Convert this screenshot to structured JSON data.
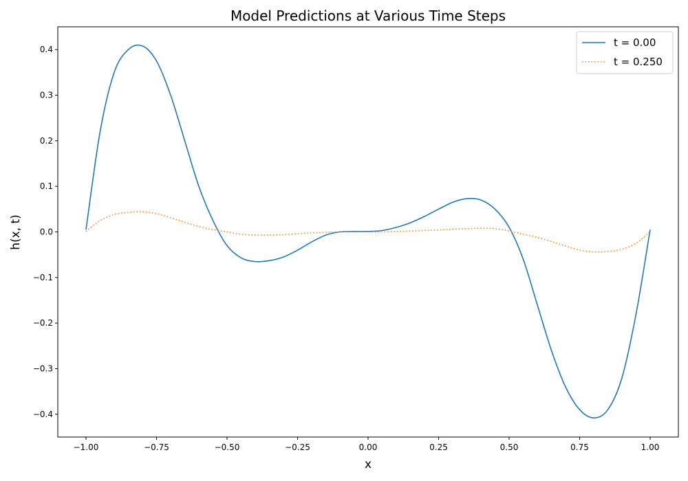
{
  "chart_data": {
    "type": "line",
    "title": "Model Predictions at Various Time Steps",
    "xlabel": "x",
    "ylabel": "h(x, t)",
    "xlim": [
      -1.1,
      1.1
    ],
    "ylim": [
      -0.45,
      0.45
    ],
    "xticks": [
      -1.0,
      -0.75,
      -0.5,
      -0.25,
      0.0,
      0.25,
      0.5,
      0.75,
      1.0
    ],
    "xtick_labels": [
      "−1.00",
      "−0.75",
      "−0.50",
      "−0.25",
      "0.00",
      "0.25",
      "0.50",
      "0.75",
      "1.00"
    ],
    "yticks": [
      -0.4,
      -0.3,
      -0.2,
      -0.1,
      0.0,
      0.1,
      0.2,
      0.3,
      0.4
    ],
    "ytick_labels": [
      "−0.4",
      "−0.3",
      "−0.2",
      "−0.1",
      "0.0",
      "0.1",
      "0.2",
      "0.3",
      "0.4"
    ],
    "grid": false,
    "legend_position": "top-right",
    "series": [
      {
        "name": "t = 0.00",
        "color": "#1f77b4",
        "style": "solid",
        "x": [
          -1.0,
          -0.95,
          -0.9,
          -0.85,
          -0.8,
          -0.75,
          -0.7,
          -0.65,
          -0.6,
          -0.55,
          -0.5,
          -0.45,
          -0.4,
          -0.35,
          -0.3,
          -0.25,
          -0.2,
          -0.15,
          -0.1,
          -0.05,
          0.0,
          0.05,
          0.1,
          0.15,
          0.2,
          0.25,
          0.3,
          0.35,
          0.4,
          0.45,
          0.5,
          0.55,
          0.6,
          0.65,
          0.7,
          0.75,
          0.8,
          0.85,
          0.9,
          0.95,
          1.0
        ],
        "y": [
          0.005,
          0.22,
          0.35,
          0.4,
          0.408,
          0.375,
          0.3,
          0.2,
          0.1,
          0.025,
          -0.03,
          -0.057,
          -0.065,
          -0.063,
          -0.055,
          -0.04,
          -0.022,
          -0.007,
          0.0,
          0.001,
          0.001,
          0.003,
          0.01,
          0.02,
          0.034,
          0.05,
          0.065,
          0.073,
          0.07,
          0.05,
          0.01,
          -0.06,
          -0.16,
          -0.26,
          -0.34,
          -0.39,
          -0.408,
          -0.39,
          -0.32,
          -0.18,
          0.005
        ]
      },
      {
        "name": "t = 0.250",
        "color": "#ff7f0e",
        "style": "dotted",
        "x": [
          -1.0,
          -0.95,
          -0.9,
          -0.85,
          -0.8,
          -0.75,
          -0.7,
          -0.65,
          -0.6,
          -0.55,
          -0.5,
          -0.45,
          -0.4,
          -0.35,
          -0.3,
          -0.25,
          -0.2,
          -0.15,
          -0.1,
          -0.05,
          0.0,
          0.05,
          0.1,
          0.15,
          0.2,
          0.25,
          0.3,
          0.35,
          0.4,
          0.45,
          0.5,
          0.55,
          0.6,
          0.65,
          0.7,
          0.75,
          0.8,
          0.85,
          0.9,
          0.95,
          1.0
        ],
        "y": [
          0.001,
          0.025,
          0.038,
          0.043,
          0.044,
          0.04,
          0.031,
          0.021,
          0.012,
          0.005,
          0.0,
          -0.005,
          -0.007,
          -0.007,
          -0.006,
          -0.004,
          -0.002,
          -0.001,
          0.0,
          0.0,
          0.0,
          0.0,
          0.001,
          0.002,
          0.003,
          0.004,
          0.006,
          0.007,
          0.008,
          0.007,
          0.002,
          -0.005,
          -0.012,
          -0.021,
          -0.031,
          -0.04,
          -0.044,
          -0.043,
          -0.038,
          -0.025,
          0.001
        ]
      }
    ]
  }
}
